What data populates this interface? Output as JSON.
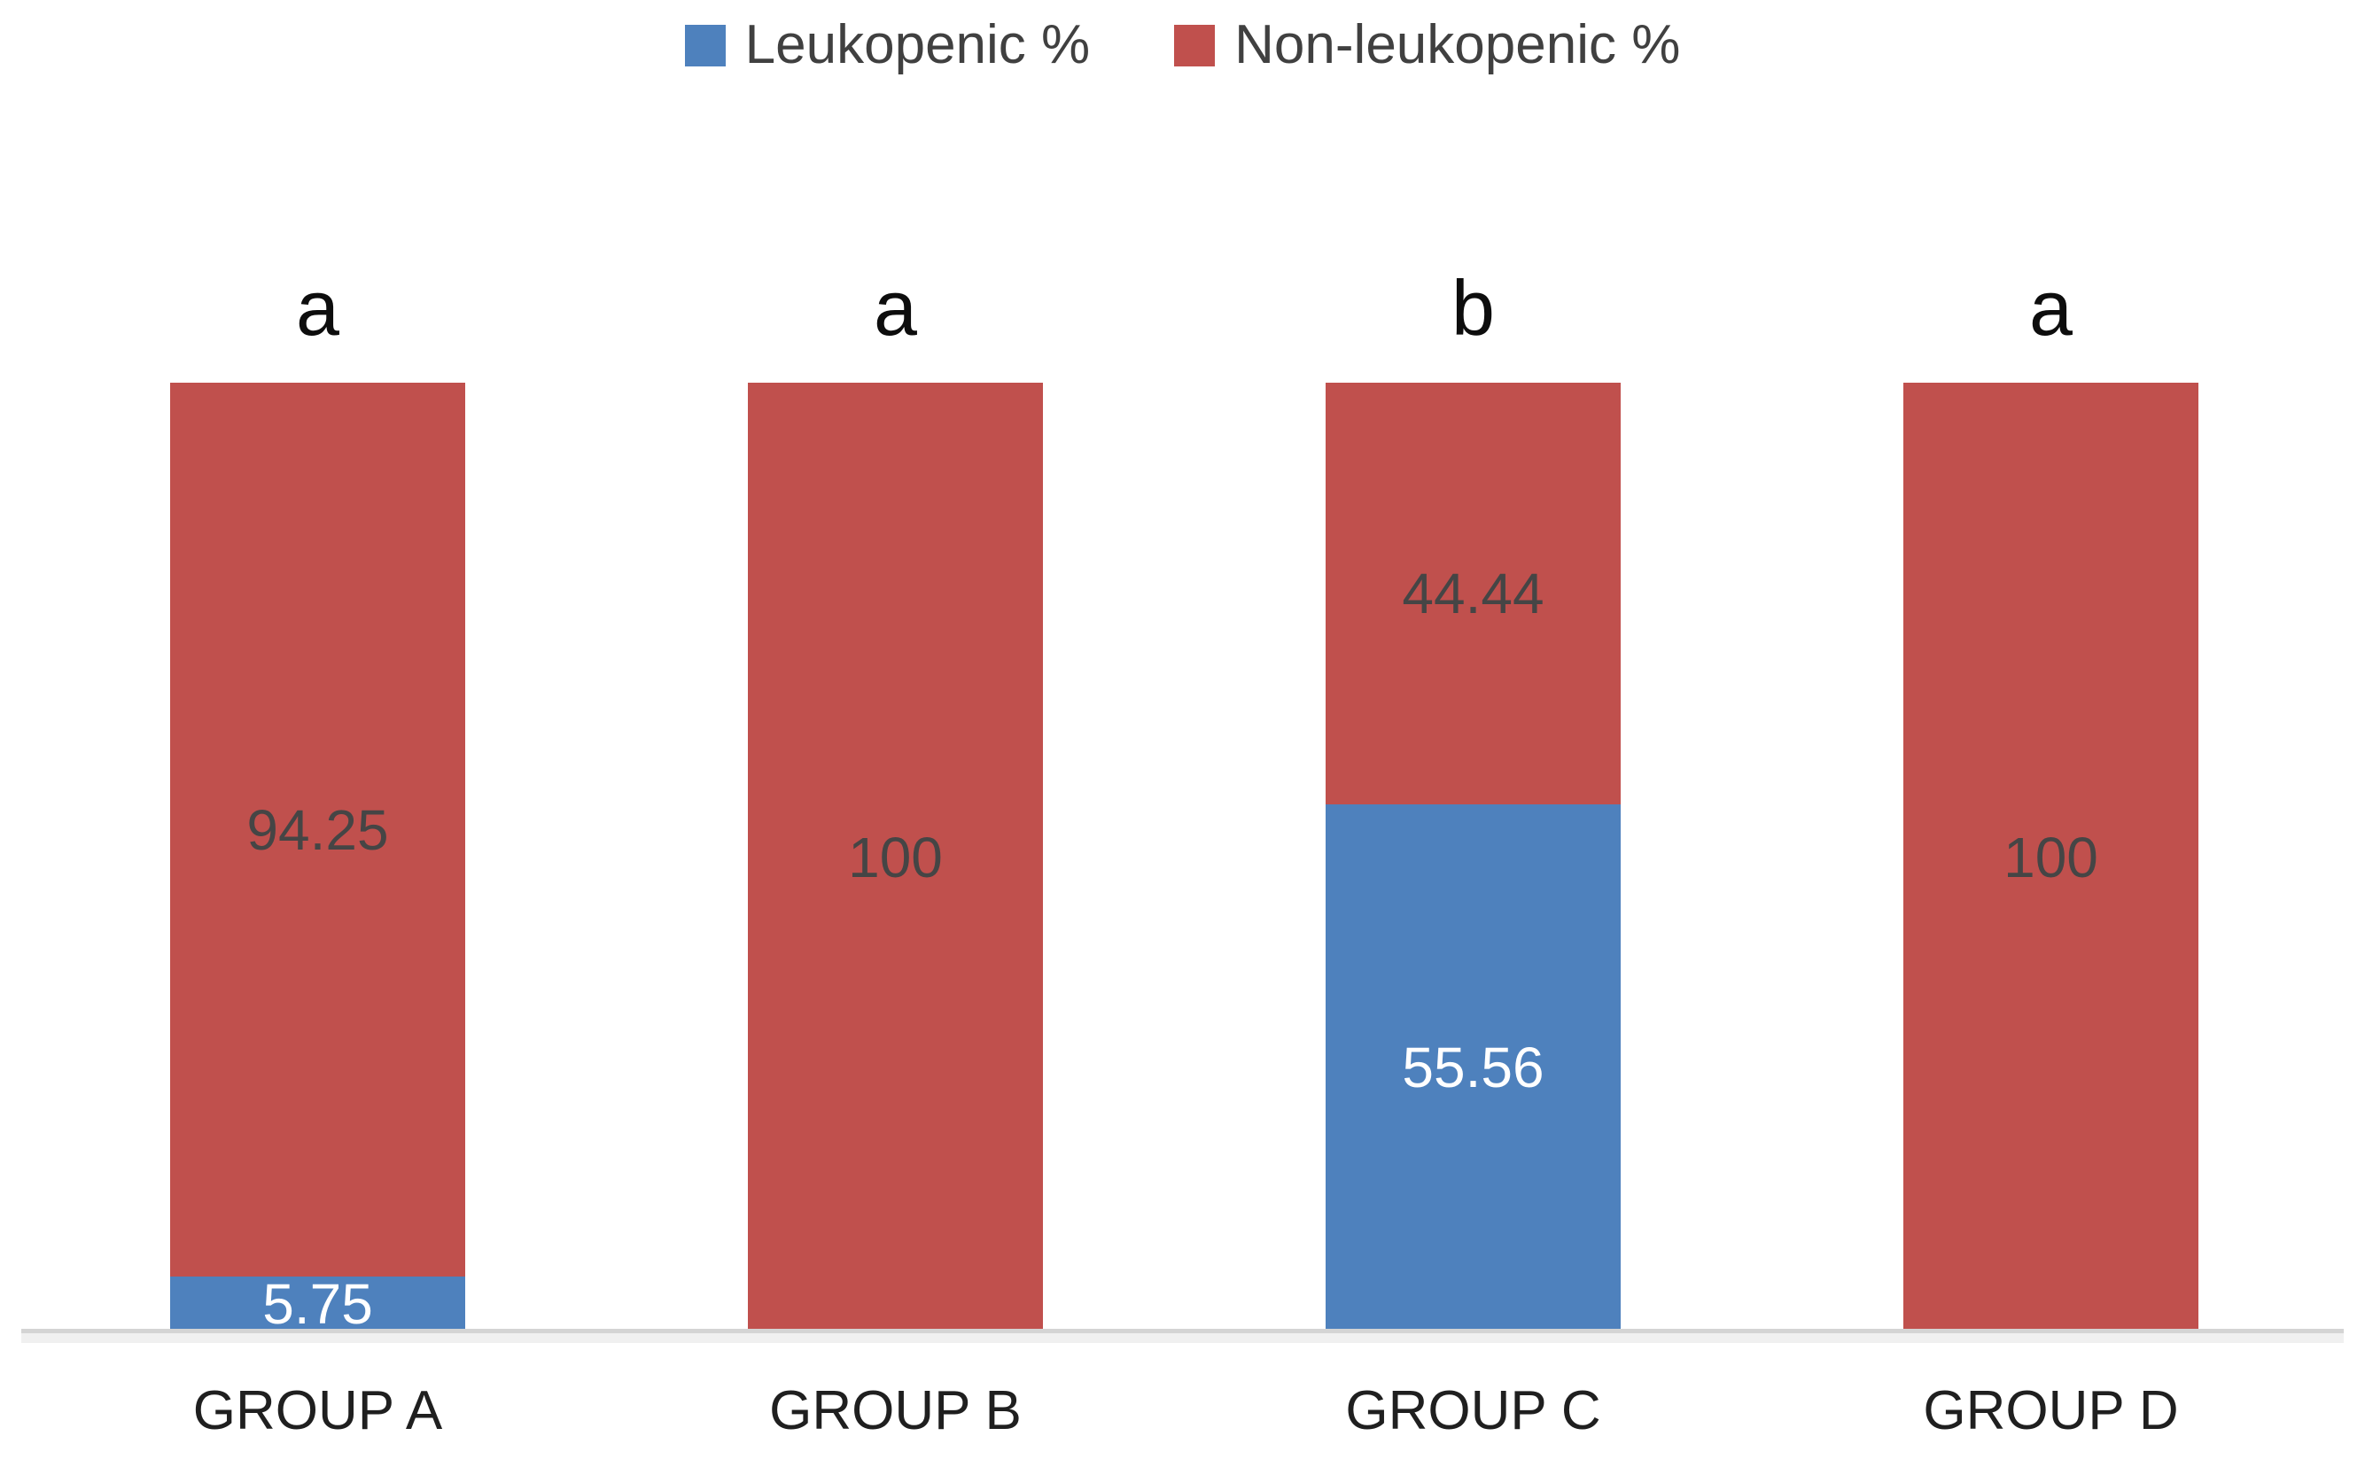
{
  "chart_data": {
    "type": "bar",
    "stacked": true,
    "orientation": "vertical",
    "title": "",
    "xlabel": "",
    "ylabel": "",
    "ylim": [
      0,
      100
    ],
    "grid": false,
    "legend_position": "top",
    "axis_line_color": "#D4D4D4",
    "background_color": "#FFFFFF",
    "categories": [
      "GROUP A",
      "GROUP B",
      "GROUP C",
      "GROUP D"
    ],
    "series": [
      {
        "name": "Leukopenic %",
        "color": "#4E81BD",
        "label_color": "#FFFFFF",
        "values": [
          5.75,
          0,
          55.56,
          0
        ],
        "labels": [
          "5.75",
          "",
          "55.56",
          ""
        ]
      },
      {
        "name": "Non-leukopenic %",
        "color": "#C0504D",
        "label_color": "#454545",
        "values": [
          94.25,
          100,
          44.44,
          100
        ],
        "labels": [
          "94.25",
          "100",
          "44.44",
          "100"
        ]
      }
    ],
    "bar_annotations": [
      "a",
      "a",
      "b",
      "a"
    ]
  }
}
